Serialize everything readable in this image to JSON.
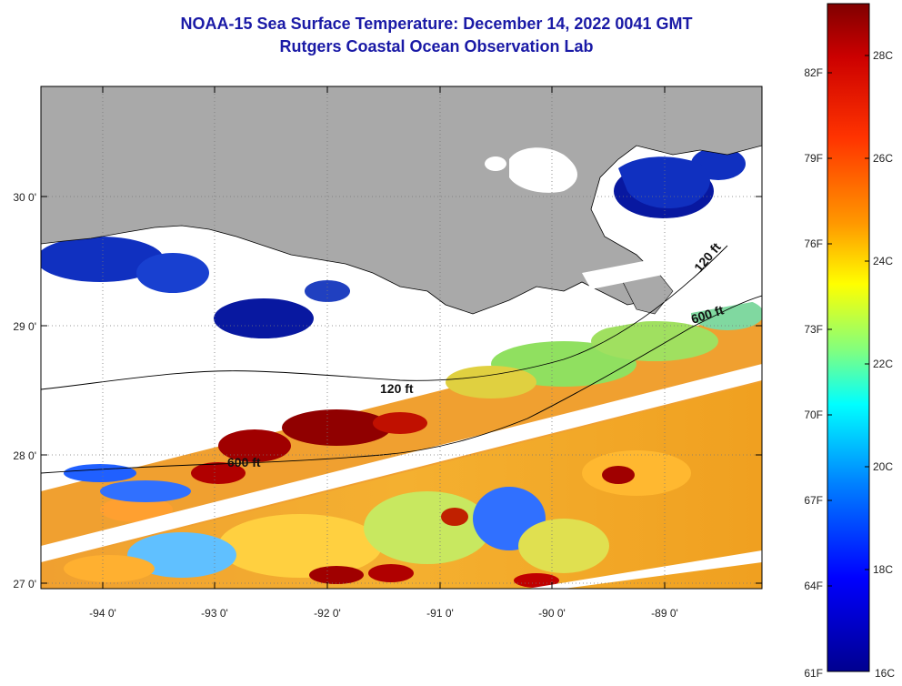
{
  "title": {
    "line1": "NOAA-15 Sea Surface Temperature:  December 14, 2022 0041 GMT",
    "line2": "Rutgers Coastal Ocean Observation Lab"
  },
  "map": {
    "lat_ticks": [
      "30 0'",
      "29 0'",
      "28 0'",
      "27 0'"
    ],
    "lon_ticks": [
      "-94 0'",
      "-93 0'",
      "-92 0'",
      "-91 0'",
      "-90 0'",
      "-89 0'"
    ],
    "lon_range": [
      -94.55,
      -88.15
    ],
    "lat_range": [
      26.95,
      30.85
    ],
    "contour_labels": {
      "a": "120 ft",
      "b": "600 ft",
      "c": "600 ft",
      "d": "120 ft"
    },
    "colors": {
      "land": "#a9a9a9",
      "cloud": "#ffffff",
      "frame": "#000000"
    }
  },
  "colorbar": {
    "fahrenheit": [
      "82F",
      "79F",
      "76F",
      "73F",
      "70F",
      "67F",
      "64F",
      "61F"
    ],
    "celsius": [
      "28C",
      "26C",
      "24C",
      "22C",
      "20C",
      "18C",
      "16C"
    ],
    "range_c": [
      16,
      29.4
    ],
    "colors": [
      "#00008f",
      "#0000ff",
      "#00a0ff",
      "#00ffff",
      "#80ff80",
      "#ffff00",
      "#ff8000",
      "#ff0000",
      "#800000"
    ]
  }
}
